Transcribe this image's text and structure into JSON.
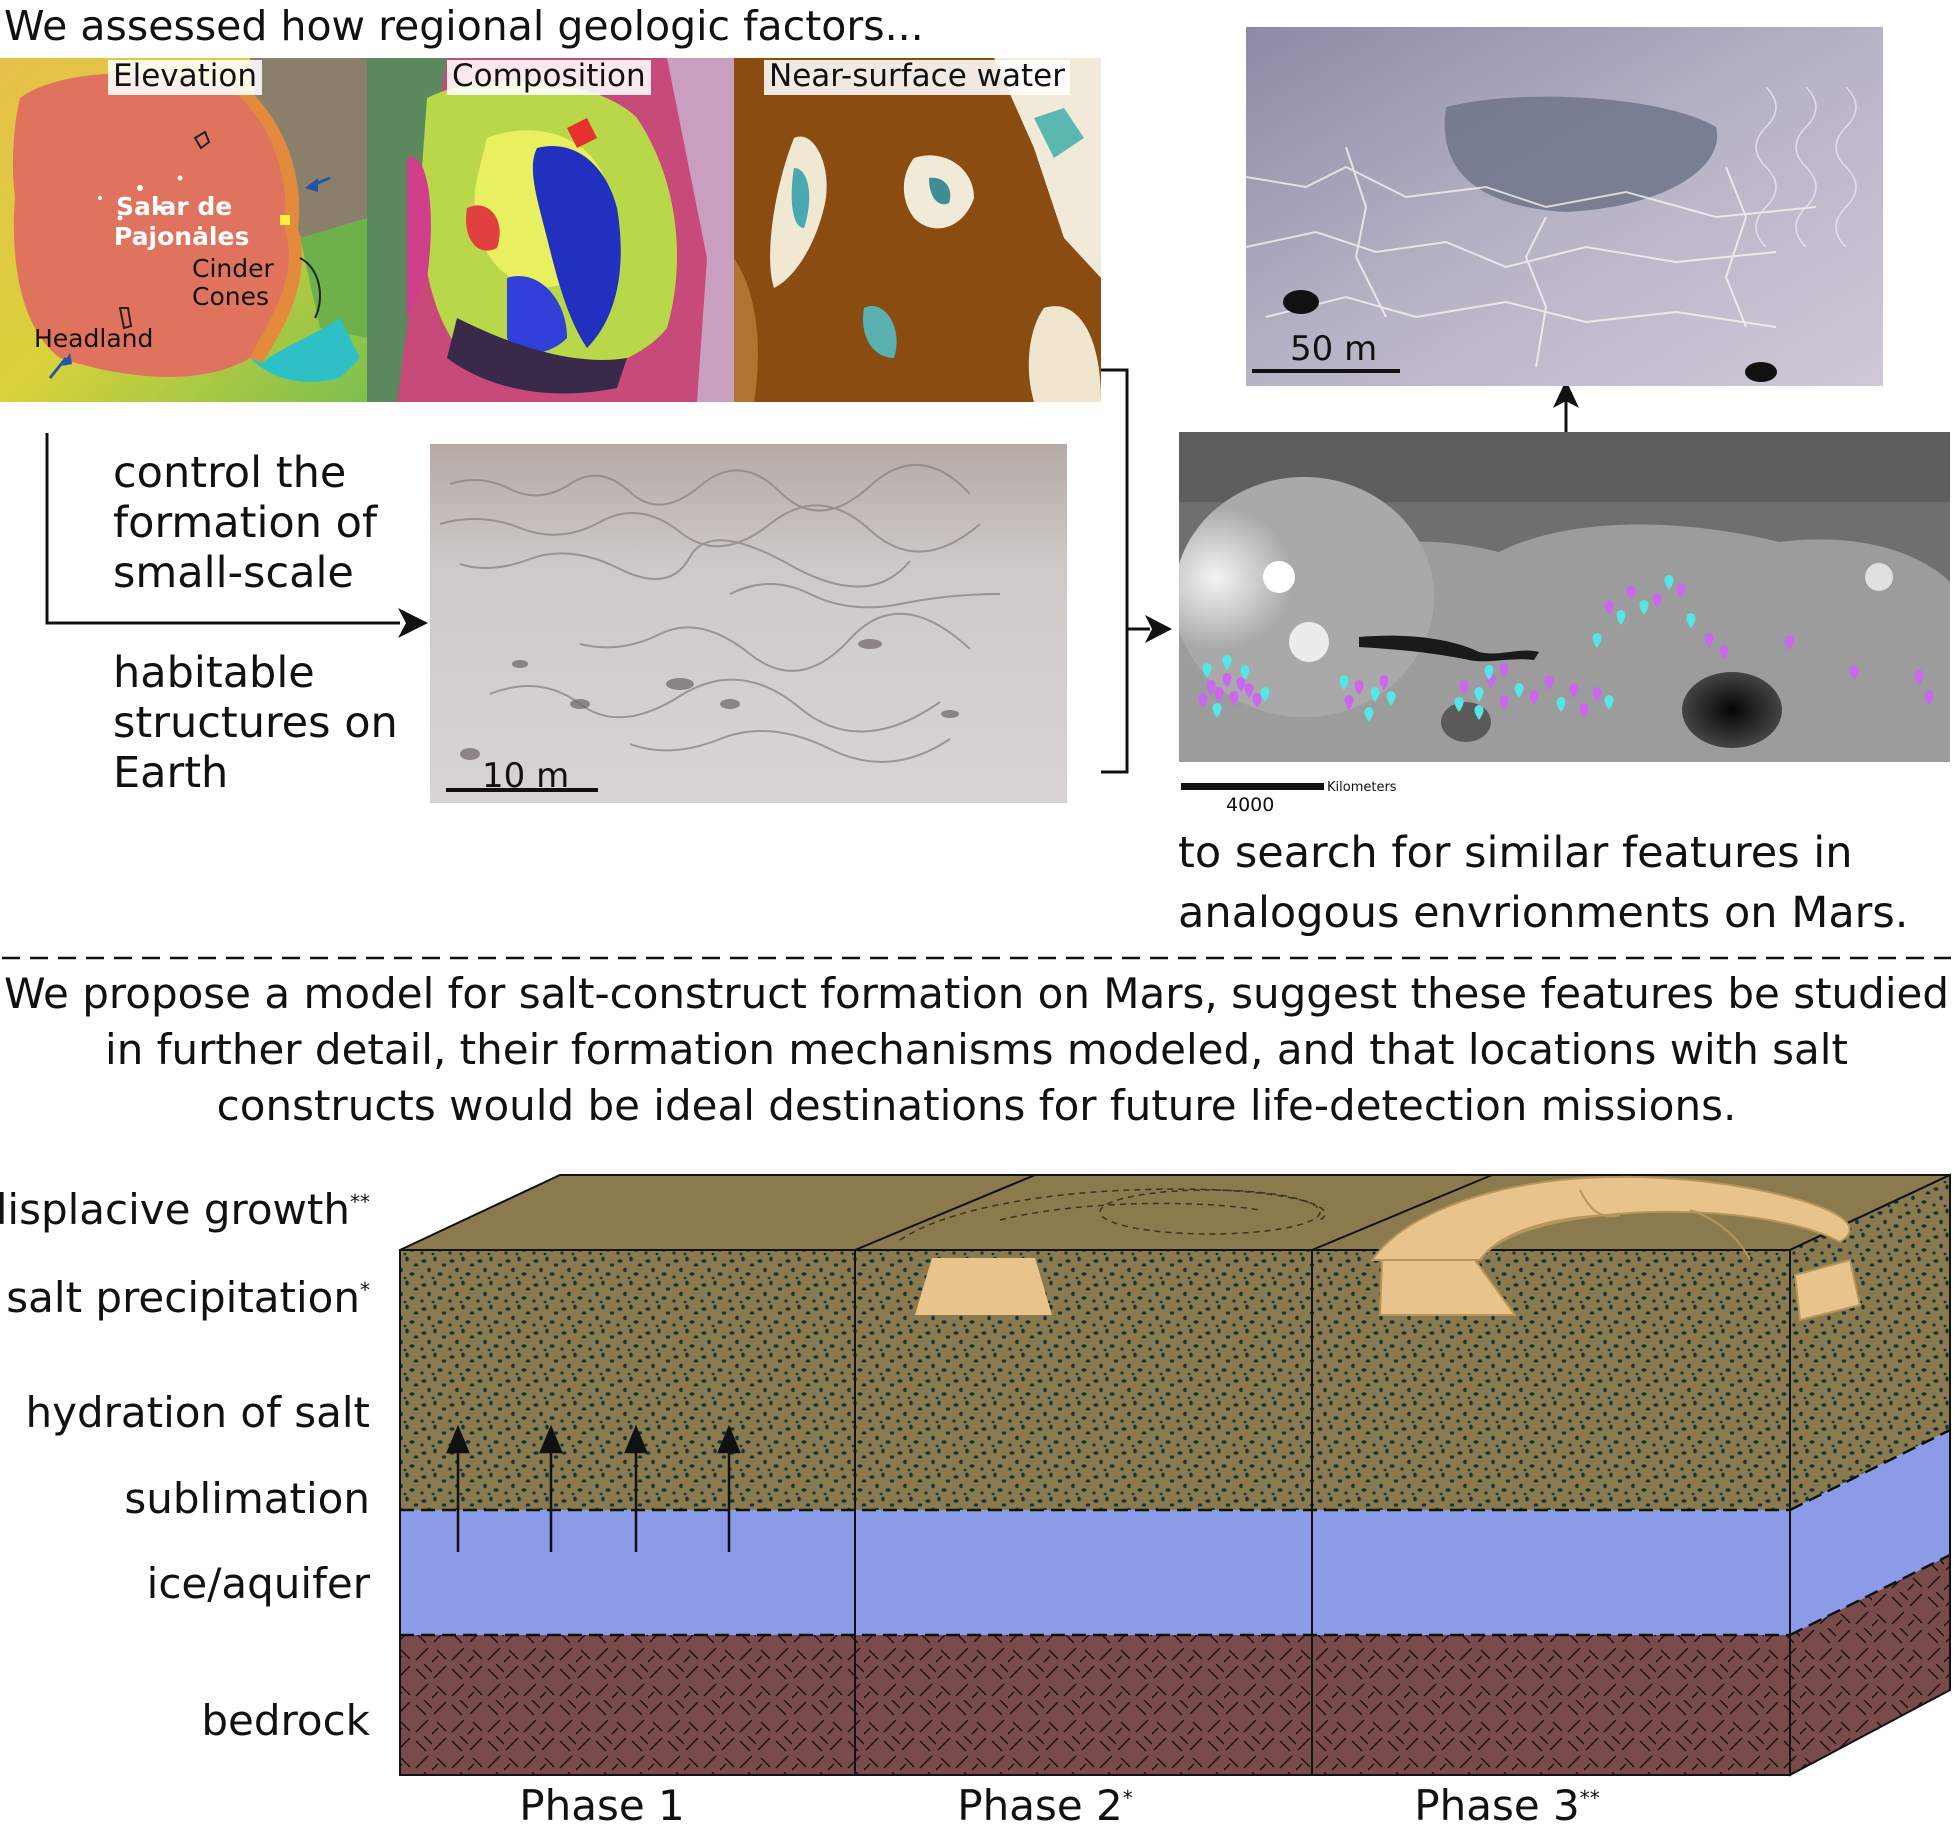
{
  "header": {
    "intro": "We assessed how regional geologic factors...",
    "panels": {
      "elevation": "Elevation",
      "composition": "Composition",
      "water": "Near-surface water"
    },
    "map_labels": {
      "salar": "Salar de",
      "pajonales": "Pajonales",
      "cinder": "Cinder",
      "cones": "Cones",
      "headland": "Headland"
    }
  },
  "middle": {
    "control_lines": [
      "control the",
      "formation of",
      "small-scale"
    ],
    "habitable_lines": [
      "habitable",
      "structures on",
      "Earth"
    ],
    "earth_scale": "10 m",
    "mars_closeup_scale": "50 m",
    "mars_map_scale_value": "4000",
    "mars_map_scale_unit": "Kilometers",
    "search_lines": [
      "to search for similar features in",
      "analogous envrionments on Mars."
    ]
  },
  "conclusion": [
    "We propose a model for salt-construct formation on Mars, suggest these features be studied",
    "in further detail, their formation mechanisms modeled, and that locations with salt",
    "constructs would be ideal destinations for future life-detection missions."
  ],
  "layers": {
    "displacive": "displacive growth",
    "displacive_mark": "**",
    "precipitation": "salt precipitation",
    "precipitation_mark": "*",
    "hydration": "hydration of salt",
    "sublimation": "sublimation",
    "ice": "ice/aquifer",
    "bedrock": "bedrock"
  },
  "phases": {
    "p1": "Phase 1",
    "p2": "Phase 2",
    "p2_mark": "*",
    "p3": "Phase 3",
    "p3_mark": "**"
  },
  "colors": {
    "soil": "#8a7a4e",
    "soil_dots": "#0e3540",
    "ice": "#8c9be8",
    "bedrock": "#7a4b4b",
    "salt": "#e8c48c",
    "marker_magenta": "#cc66ee",
    "marker_cyan": "#55e6e6"
  }
}
